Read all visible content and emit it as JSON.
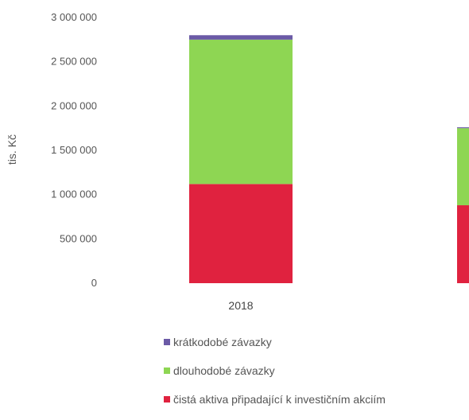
{
  "chart_data": {
    "type": "bar",
    "stacked": true,
    "title": "",
    "xlabel": "",
    "ylabel": "tis. Kč",
    "ylim": [
      0,
      3000000
    ],
    "yticks": [
      0,
      500000,
      1000000,
      1500000,
      2000000,
      2500000,
      3000000
    ],
    "ytick_labels": [
      "0",
      "500 000",
      "1 000 000",
      "1 500 000",
      "2 000 000",
      "2 500 000",
      "3 000 000"
    ],
    "categories": [
      "2018",
      ""
    ],
    "series": [
      {
        "name": "čistá aktiva připadající k investičním akciím",
        "color": "#e0223f",
        "values": [
          1120000,
          880000
        ]
      },
      {
        "name": "dlouhodobé závazky",
        "color": "#8ed653",
        "values": [
          1630000,
          870000
        ]
      },
      {
        "name": "krátkodobé závazky",
        "color": "#6b5aa6",
        "values": [
          50000,
          10000
        ]
      }
    ],
    "legend_order": [
      2,
      1,
      0
    ],
    "legend_position": "bottom",
    "grid": false
  }
}
